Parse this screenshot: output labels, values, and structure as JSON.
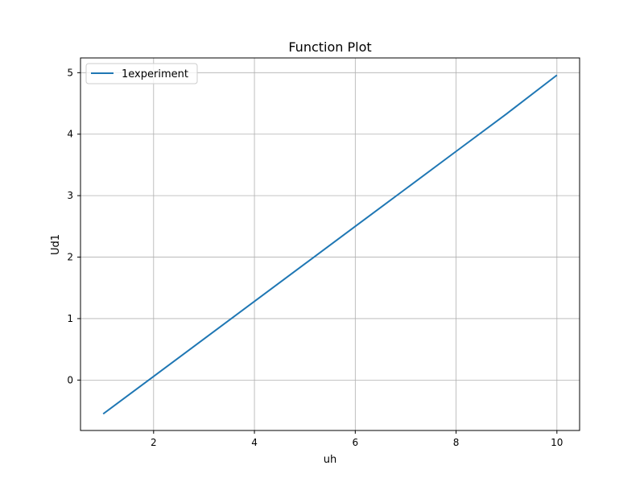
{
  "chart_data": {
    "type": "line",
    "title": "Function Plot",
    "xlabel": "uh",
    "ylabel": "Ud1",
    "xlim": [
      0.55,
      10.45
    ],
    "ylim": [
      -0.82,
      5.24
    ],
    "xticks": [
      2,
      4,
      6,
      8,
      10
    ],
    "yticks": [
      0,
      1,
      2,
      3,
      4,
      5
    ],
    "xtick_labels": [
      "2",
      "4",
      "6",
      "8",
      "10"
    ],
    "ytick_labels": [
      "0",
      "1",
      "2",
      "3",
      "4",
      "5"
    ],
    "grid": true,
    "legend_position": "top-left",
    "series": [
      {
        "name": "1experiment",
        "color": "#1f77b4",
        "x": [
          1,
          2,
          3,
          4,
          5,
          6,
          7,
          8,
          9,
          10
        ],
        "y": [
          -0.55,
          0.06,
          0.67,
          1.28,
          1.89,
          2.5,
          3.11,
          3.72,
          4.33,
          4.96
        ]
      }
    ]
  }
}
